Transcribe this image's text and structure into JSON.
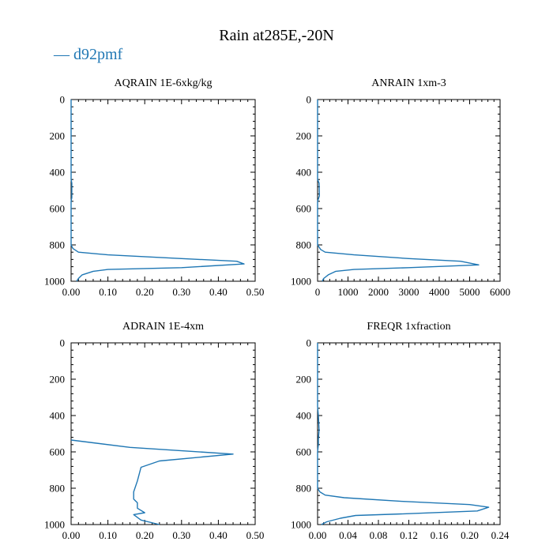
{
  "title": "Rain at285E,-20N",
  "legend": {
    "label": "d92pmf",
    "color": "#1f77b4",
    "marker": "—"
  },
  "chart_data": [
    {
      "type": "line",
      "title": "AQRAIN  1E-6xkg/kg",
      "xlim": [
        0,
        0.5
      ],
      "ylim": [
        1000,
        0
      ],
      "xticks": [
        "0.00",
        "0.10",
        "0.20",
        "0.30",
        "0.40",
        "0.50"
      ],
      "xtick_values": [
        0,
        0.1,
        0.2,
        0.3,
        0.4,
        0.5
      ],
      "yticks": [
        "0",
        "200",
        "400",
        "600",
        "800",
        "1000"
      ],
      "ytick_values": [
        0,
        200,
        400,
        600,
        800,
        1000
      ],
      "series": [
        {
          "name": "d92pmf",
          "x": [
            0,
            0,
            0.002,
            0.002,
            0,
            0,
            0.005,
            0.02,
            0.1,
            0.3,
            0.45,
            0.47,
            0.3,
            0.1,
            0.06,
            0.03,
            0.02,
            0.015
          ],
          "y": [
            0,
            440,
            460,
            540,
            560,
            800,
            820,
            840,
            855,
            875,
            890,
            905,
            925,
            935,
            945,
            965,
            985,
            1000
          ]
        }
      ]
    },
    {
      "type": "line",
      "title": "ANRAIN  1xm-3",
      "xlim": [
        0,
        6000
      ],
      "ylim": [
        1000,
        0
      ],
      "xticks": [
        "0",
        "1000",
        "2000",
        "3000",
        "4000",
        "5000",
        "6000"
      ],
      "xtick_values": [
        0,
        1000,
        2000,
        3000,
        4000,
        5000,
        6000
      ],
      "yticks": [
        "0",
        "200",
        "400",
        "600",
        "800",
        "1000"
      ],
      "ytick_values": [
        0,
        200,
        400,
        600,
        800,
        1000
      ],
      "series": [
        {
          "name": "d92pmf",
          "x": [
            0,
            0,
            50,
            60,
            0,
            0,
            100,
            250,
            1200,
            3000,
            4700,
            5300,
            3000,
            1200,
            600,
            350,
            200,
            150
          ],
          "y": [
            0,
            440,
            460,
            530,
            560,
            800,
            825,
            840,
            855,
            875,
            890,
            910,
            925,
            935,
            945,
            965,
            985,
            1000
          ]
        }
      ]
    },
    {
      "type": "line",
      "title": "ADRAIN  1E-4xm",
      "xlim": [
        0,
        0.5
      ],
      "ylim": [
        1000,
        0
      ],
      "xticks": [
        "0.00",
        "0.10",
        "0.20",
        "0.30",
        "0.40",
        "0.50"
      ],
      "xtick_values": [
        0,
        0.1,
        0.2,
        0.3,
        0.4,
        0.5
      ],
      "yticks": [
        "0",
        "200",
        "400",
        "600",
        "800",
        "1000"
      ],
      "ytick_values": [
        0,
        200,
        400,
        600,
        800,
        1000
      ],
      "series": [
        {
          "name": "d92pmf",
          "x": [
            0,
            0.16,
            0.44,
            0.24,
            0.19,
            0.18,
            0.17,
            0.17,
            0.18,
            0.18,
            0.2,
            0.17,
            0.19,
            0.24
          ],
          "y": [
            535,
            575,
            612,
            650,
            685,
            760,
            820,
            860,
            880,
            910,
            935,
            945,
            975,
            1000
          ]
        }
      ]
    },
    {
      "type": "line",
      "title": "FREQR  1xfraction",
      "xlim": [
        0,
        0.24
      ],
      "ylim": [
        1000,
        0
      ],
      "xticks": [
        "0.00",
        "0.04",
        "0.08",
        "0.12",
        "0.16",
        "0.20",
        "0.24"
      ],
      "xtick_values": [
        0,
        0.04,
        0.08,
        0.12,
        0.16,
        0.2,
        0.24
      ],
      "yticks": [
        "0",
        "200",
        "400",
        "600",
        "800",
        "1000"
      ],
      "ytick_values": [
        0,
        200,
        400,
        600,
        800,
        1000
      ],
      "series": [
        {
          "name": "d92pmf",
          "x": [
            0,
            0,
            0.001,
            0.002,
            0.001,
            0.001,
            0,
            0,
            0.003,
            0.01,
            0.035,
            0.11,
            0.2,
            0.225,
            0.21,
            0.12,
            0.05,
            0.03,
            0.012,
            0.005
          ],
          "y": [
            0,
            350,
            400,
            480,
            530,
            560,
            600,
            800,
            820,
            838,
            852,
            872,
            890,
            905,
            925,
            940,
            950,
            965,
            985,
            1000
          ]
        }
      ]
    }
  ]
}
